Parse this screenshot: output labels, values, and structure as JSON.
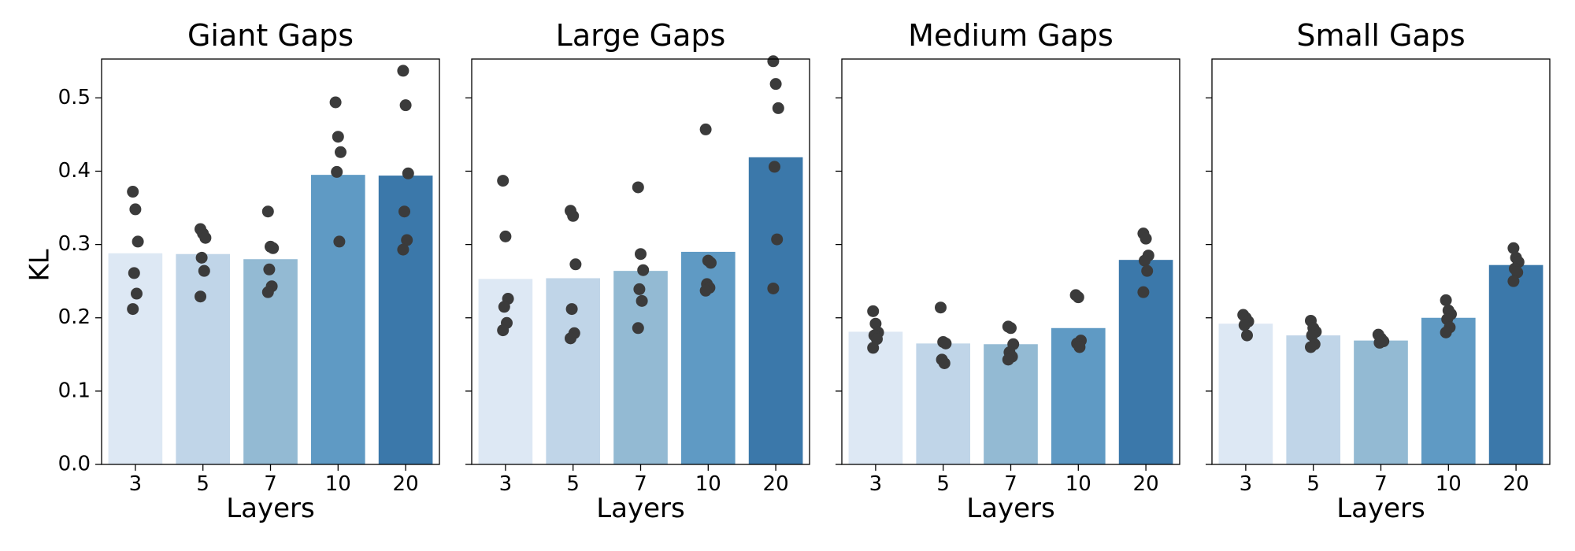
{
  "chart_data": {
    "type": "bar",
    "ylabel": "KL",
    "ylim": [
      0,
      0.553
    ],
    "yticks": [
      0.0,
      0.1,
      0.2,
      0.3,
      0.4,
      0.5
    ],
    "ytick_labels": [
      "0.0",
      "0.1",
      "0.2",
      "0.3",
      "0.4",
      "0.5"
    ],
    "sharey": true,
    "grid": false,
    "bar_colors": [
      "#dde8f4",
      "#c0d5e8",
      "#93bad3",
      "#5f9ac4",
      "#3b78aa"
    ],
    "point_color": "#3b3b3b",
    "panels": [
      {
        "title": "Giant Gaps",
        "xlabel": "Layers",
        "categories": [
          "3",
          "5",
          "7",
          "10",
          "20"
        ],
        "values": [
          0.288,
          0.287,
          0.28,
          0.395,
          0.394
        ],
        "points": [
          [
            0.372,
            0.348,
            0.304,
            0.261,
            0.233,
            0.212
          ],
          [
            0.321,
            0.315,
            0.309,
            0.282,
            0.264,
            0.229
          ],
          [
            0.345,
            0.297,
            0.295,
            0.266,
            0.243,
            0.235
          ],
          [
            0.494,
            0.447,
            0.426,
            0.399,
            0.304
          ],
          [
            0.537,
            0.49,
            0.397,
            0.345,
            0.306,
            0.293
          ]
        ]
      },
      {
        "title": "Large Gaps",
        "xlabel": "Layers",
        "categories": [
          "3",
          "5",
          "7",
          "10",
          "20"
        ],
        "values": [
          0.253,
          0.254,
          0.264,
          0.29,
          0.419
        ],
        "points": [
          [
            0.387,
            0.311,
            0.226,
            0.215,
            0.193,
            0.183
          ],
          [
            0.346,
            0.339,
            0.273,
            0.212,
            0.179,
            0.172
          ],
          [
            0.378,
            0.287,
            0.265,
            0.239,
            0.223,
            0.186
          ],
          [
            0.457,
            0.278,
            0.275,
            0.246,
            0.241,
            0.237
          ],
          [
            0.55,
            0.519,
            0.486,
            0.406,
            0.307,
            0.24
          ]
        ]
      },
      {
        "title": "Medium Gaps",
        "xlabel": "Layers",
        "categories": [
          "3",
          "5",
          "7",
          "10",
          "20"
        ],
        "values": [
          0.181,
          0.165,
          0.164,
          0.186,
          0.279
        ],
        "points": [
          [
            0.209,
            0.192,
            0.18,
            0.176,
            0.171,
            0.159
          ],
          [
            0.214,
            0.167,
            0.165,
            0.143,
            0.138
          ],
          [
            0.188,
            0.186,
            0.164,
            0.153,
            0.147,
            0.143
          ],
          [
            0.231,
            0.228,
            0.169,
            0.165,
            0.16
          ],
          [
            0.315,
            0.308,
            0.285,
            0.278,
            0.264,
            0.235
          ]
        ]
      },
      {
        "title": "Small Gaps",
        "xlabel": "Layers",
        "categories": [
          "3",
          "5",
          "7",
          "10",
          "20"
        ],
        "values": [
          0.192,
          0.176,
          0.169,
          0.2,
          0.272
        ],
        "points": [
          [
            0.204,
            0.2,
            0.195,
            0.19,
            0.176
          ],
          [
            0.196,
            0.186,
            0.181,
            0.176,
            0.164,
            0.16
          ],
          [
            0.177,
            0.172,
            0.168,
            0.166
          ],
          [
            0.224,
            0.21,
            0.205,
            0.198,
            0.187,
            0.18
          ],
          [
            0.295,
            0.282,
            0.276,
            0.267,
            0.262,
            0.25
          ]
        ]
      }
    ]
  }
}
